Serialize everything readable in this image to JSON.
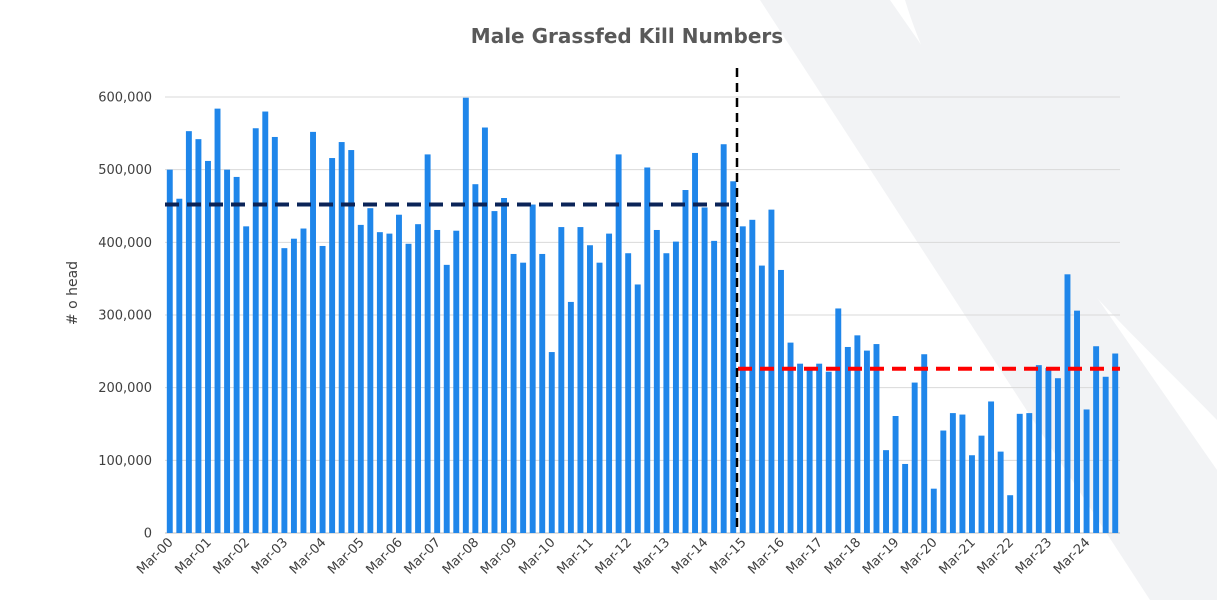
{
  "chart_data": {
    "type": "bar",
    "title": "Male Grassfed Kill Numbers",
    "xlabel": "",
    "ylabel": "# o head",
    "ylim": [
      0,
      600000
    ],
    "y_ticks": [
      0,
      100000,
      200000,
      300000,
      400000,
      500000,
      600000
    ],
    "y_tick_labels": [
      "0",
      "100,000",
      "200,000",
      "300,000",
      "400,000",
      "500,000",
      "600,000"
    ],
    "x_tick_labels": [
      "Mar-00",
      "Mar-01",
      "Mar-02",
      "Mar-03",
      "Mar-04",
      "Mar-05",
      "Mar-06",
      "Mar-07",
      "Mar-08",
      "Mar-09",
      "Mar-10",
      "Mar-11",
      "Mar-12",
      "Mar-13",
      "Mar-14",
      "Mar-15",
      "Mar-16",
      "Mar-17",
      "Mar-18",
      "Mar-19",
      "Mar-20",
      "Mar-21",
      "Mar-22",
      "Mar-23",
      "Mar-24"
    ],
    "grid": true,
    "bar_color": "#1f86ea",
    "values": [
      500000,
      460000,
      553000,
      542000,
      512000,
      584000,
      500000,
      490000,
      422000,
      557000,
      580000,
      545000,
      392000,
      405000,
      419000,
      552000,
      395000,
      516000,
      538000,
      527000,
      424000,
      447000,
      414000,
      412000,
      438000,
      398000,
      425000,
      521000,
      417000,
      369000,
      416000,
      599000,
      480000,
      558000,
      443000,
      461000,
      384000,
      372000,
      452000,
      384000,
      249000,
      421000,
      318000,
      421000,
      396000,
      372000,
      412000,
      521000,
      385000,
      342000,
      503000,
      417000,
      385000,
      401000,
      472000,
      523000,
      448000,
      402000,
      535000,
      484000,
      422000,
      431000,
      368000,
      445000,
      362000,
      262000,
      233000,
      226000,
      233000,
      222000,
      309000,
      256000,
      272000,
      251000,
      260000,
      114000,
      161000,
      95000,
      207000,
      246000,
      61000,
      141000,
      165000,
      163000,
      107000,
      134000,
      181000,
      112000,
      52000,
      164000,
      165000,
      231000,
      227000,
      213000,
      356000,
      306000,
      170000,
      257000,
      215000,
      247000
    ],
    "averages": [
      {
        "from_index": 0,
        "to_index": 59,
        "value": 452000,
        "color": "#0b2458"
      },
      {
        "from_index": 60,
        "to_index": 99,
        "value": 226000,
        "color": "#ff0000"
      }
    ],
    "divider_after_index": 59,
    "divider_color": "#000000"
  }
}
